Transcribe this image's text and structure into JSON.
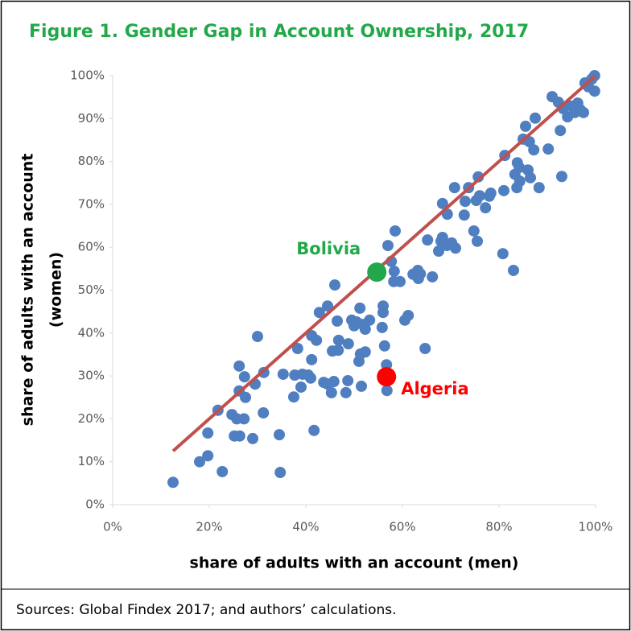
{
  "chart_data": {
    "type": "scatter",
    "title": "Figure 1. Gender Gap in Account Ownership, 2017",
    "xlabel": "share of adults with an account (men)",
    "ylabel": [
      "share of adults with an account",
      "(women)"
    ],
    "source": "Sources: Global Findex 2017; and authors’ calculations.",
    "xlim": [
      0,
      100
    ],
    "ylim": [
      0,
      100
    ],
    "xticks": [
      {
        "value": 0,
        "label": "0%"
      },
      {
        "value": 20,
        "label": "20%"
      },
      {
        "value": 40,
        "label": "40%"
      },
      {
        "value": 60,
        "label": "60%"
      },
      {
        "value": 80,
        "label": "80%"
      },
      {
        "value": 100,
        "label": "100%"
      }
    ],
    "yticks": [
      {
        "value": 0,
        "label": "0%"
      },
      {
        "value": 10,
        "label": "10%"
      },
      {
        "value": 20,
        "label": "20%"
      },
      {
        "value": 30,
        "label": "30%"
      },
      {
        "value": 40,
        "label": "40%"
      },
      {
        "value": 50,
        "label": "50%"
      },
      {
        "value": 60,
        "label": "60%"
      },
      {
        "value": 70,
        "label": "70%"
      },
      {
        "value": 80,
        "label": "80%"
      },
      {
        "value": 90,
        "label": "90%"
      },
      {
        "value": 100,
        "label": "100%"
      }
    ],
    "grid": false,
    "series": [
      {
        "color": "#4f7fc0",
        "x": [
          12.5,
          18,
          19.7,
          19.7,
          21.8,
          22.7,
          24.7,
          25.2,
          26.3,
          25.7,
          26.2,
          26.2,
          27.2,
          27.5,
          27.3,
          29,
          29.5,
          30,
          31.3,
          31.2,
          34.5,
          34.7,
          35.3,
          37.5,
          37.7,
          38.3,
          39,
          39.3,
          40.5,
          41,
          41.2,
          41.2,
          41.7,
          42.2,
          42.8,
          43.7,
          44.5,
          44.5,
          45.3,
          45.5,
          45.8,
          46,
          46.5,
          46.7,
          46.8,
          48.3,
          48.7,
          48.8,
          49.5,
          50,
          50.5,
          51.2,
          51,
          51.3,
          51.5,
          51.8,
          52.3,
          52.3,
          53.2,
          56,
          55.8,
          56,
          56.3,
          56.5,
          56.7,
          56.8,
          57,
          57.7,
          58.2,
          58.3,
          58.5,
          59.5,
          60.5,
          61.2,
          62.2,
          63.2,
          63.3,
          63.7,
          64.7,
          65.2,
          66.2,
          67.5,
          68,
          68.3,
          68.3,
          69.3,
          69.2,
          70.2,
          71,
          70.8,
          72.8,
          73,
          73.7,
          74.8,
          75.5,
          75.3,
          75.7,
          76,
          77.2,
          78,
          78.3,
          80.8,
          81,
          81.2,
          83,
          83.3,
          83.7,
          83.8,
          84.2,
          84.3,
          85,
          85.5,
          86,
          86.3,
          86.5,
          87.2,
          87.5,
          88.3,
          90.2,
          91,
          92.7,
          93,
          94.2,
          95,
          95.7,
          96.3,
          96.8,
          97.5,
          97.8,
          98.5,
          99.2,
          99.8,
          99.8,
          92.3,
          93.3
        ],
        "values": [
          5.2,
          10,
          11.4,
          16.7,
          22,
          7.7,
          21,
          16,
          16,
          20,
          26.5,
          32.3,
          20,
          25,
          29.8,
          15.4,
          28.1,
          39.2,
          30.8,
          21.4,
          16.3,
          7.5,
          30.4,
          25.1,
          30.2,
          36.4,
          27.4,
          30.4,
          30.2,
          29.5,
          33.8,
          39.4,
          17.3,
          38.3,
          44.8,
          28.5,
          46.3,
          28.1,
          26.1,
          35.8,
          28.7,
          51.2,
          42.8,
          36,
          38.3,
          26.1,
          28.9,
          37.5,
          43,
          41.7,
          42.6,
          45.8,
          33.4,
          35.1,
          27.6,
          42,
          35.6,
          40.9,
          43,
          46.3,
          41.3,
          44.8,
          37,
          29.5,
          32.6,
          26.6,
          60.4,
          56.7,
          52,
          54.4,
          63.8,
          52,
          43,
          44.1,
          53.7,
          54.6,
          52.7,
          53.8,
          36.4,
          61.7,
          53.1,
          59.1,
          61.4,
          62.3,
          70.2,
          67.7,
          60.4,
          61,
          59.8,
          73.9,
          67.5,
          70.7,
          73.9,
          63.8,
          61.4,
          70.9,
          76.4,
          72,
          69.2,
          71.9,
          72.6,
          58.5,
          73.2,
          81.4,
          54.6,
          77,
          73.9,
          79.7,
          78.6,
          75.4,
          85.2,
          88.2,
          78,
          84.6,
          76.2,
          82.7,
          90.1,
          73.9,
          82.9,
          95.1,
          87.2,
          76.5,
          90.4,
          92.9,
          91.4,
          93.6,
          92.1,
          91.4,
          98.3,
          97.4,
          99.2,
          96.4,
          100,
          93.8,
          92.3
        ]
      }
    ],
    "trend_line": {
      "color": "#c0504d",
      "x": [
        12.5,
        100
      ],
      "values": [
        12.5,
        100
      ]
    },
    "highlights": [
      {
        "label": "Bolivia",
        "x": 54.7,
        "y": 54.2,
        "color": "#22a84a"
      },
      {
        "label": "Algeria",
        "x": 56.7,
        "y": 29.8,
        "color": "#ff0000"
      }
    ],
    "title_color": "#22a84a"
  }
}
